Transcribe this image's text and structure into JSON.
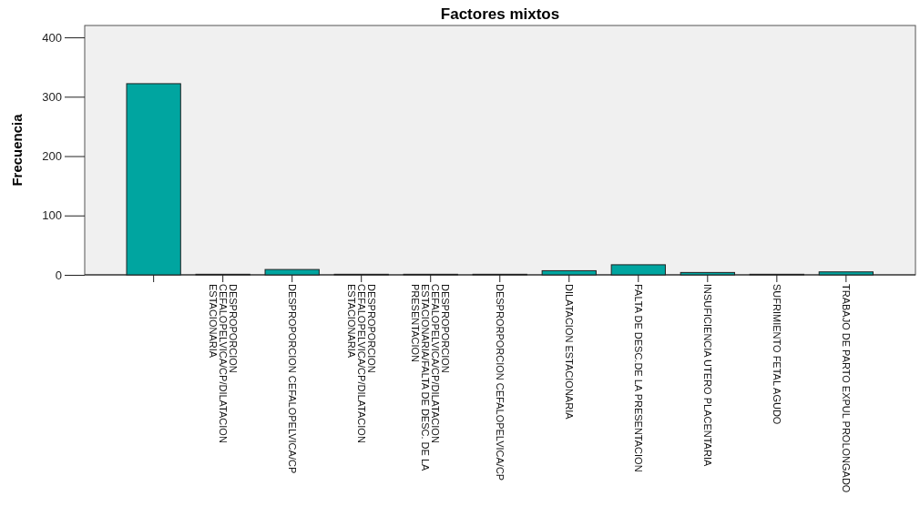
{
  "chart_data": {
    "type": "bar",
    "title": "Factores mixtos",
    "ylabel": "Frecuencia",
    "categories": [
      null,
      "DESPROPORCION\nCEFALOPELVICA/CP/DILATACION\nESTACIONARIA",
      "DESPROPORCION CEFALOPELVICA/CP",
      "DESPROPORCION\nCEFALOPELVICA/CP/DILATACION\nESTACIONARIA",
      "DESPROPORCION\nCEFALOPELVICA/CP/DILATACION\nESTACIONARIA/FALTA DE DESC. DE LA\nPRESENTACION",
      "DESPRORPORCION CEFALOPELVICA/CP",
      "DILATACION ESTACIONARIA",
      "FALTA DE DESC.DE LA PRESENTACION",
      "INSUFICIENCIA UTERO PLACENTARIA",
      "SUFRIMIENTO FETAL AGUDO",
      "TRABAJO DE PARTO EXPUL PROLONGADO"
    ],
    "values": [
      322,
      1,
      9,
      1,
      1,
      1,
      7,
      17,
      4,
      1,
      5
    ],
    "color": "#00a5a0",
    "ylim": [
      0,
      420
    ],
    "yticks": [
      0,
      100,
      200,
      300,
      400
    ],
    "grid": false
  }
}
